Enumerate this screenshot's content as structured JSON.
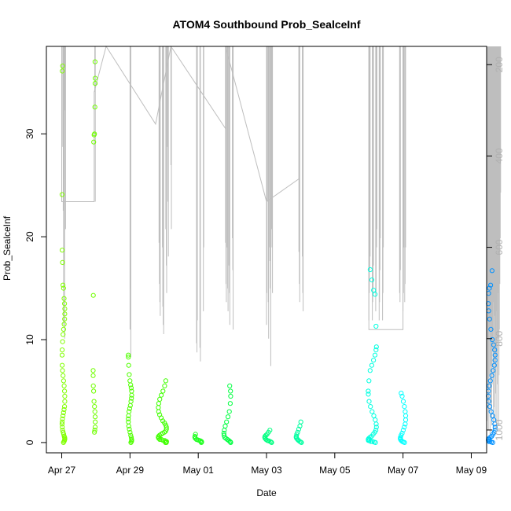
{
  "chart_data": {
    "type": "scatter",
    "title": "ATOM4 Southbound Prob_SealceInf",
    "xlabel": "Date",
    "ylabel": "Prob_SealceInf",
    "x_unit": "days since Apr 27",
    "xlim": [
      -0.45,
      12.45
    ],
    "ylim": [
      -1.0,
      38.5
    ],
    "y2lim": [
      1050,
      160
    ],
    "x_ticks": [
      {
        "value": 0,
        "label": "Apr 27"
      },
      {
        "value": 2,
        "label": "Apr 29"
      },
      {
        "value": 4,
        "label": "May 01"
      },
      {
        "value": 6,
        "label": "May 03"
      },
      {
        "value": 8,
        "label": "May 05"
      },
      {
        "value": 10,
        "label": "May 07"
      },
      {
        "value": 12,
        "label": "May 09"
      }
    ],
    "y_ticks": [
      {
        "value": 0,
        "label": "0"
      },
      {
        "value": 10,
        "label": "10"
      },
      {
        "value": 20,
        "label": "20"
      },
      {
        "value": 30,
        "label": "30"
      }
    ],
    "y2_ticks": [
      {
        "value": 200,
        "label": "200"
      },
      {
        "value": 400,
        "label": "400"
      },
      {
        "value": 600,
        "label": "600"
      },
      {
        "value": 800,
        "label": "800"
      },
      {
        "value": 1000,
        "label": "1000"
      }
    ],
    "colors": {
      "axis": "#000000",
      "depth_line": "#bebebe",
      "palette": [
        "#80ff00",
        "#40ff00",
        "#00ff40",
        "#00ff80",
        "#00ffbf",
        "#00ffff",
        "#00bfff",
        "#0080ff"
      ]
    },
    "clusters": [
      {
        "x": 0.05,
        "spread": 0.04,
        "color": "#80ff00",
        "values": [
          0,
          0.1,
          0.2,
          0.3,
          0.4,
          0.5,
          0.6,
          0.8,
          1.0,
          1.2,
          1.5,
          1.8,
          2.0,
          2.3,
          2.6,
          2.9,
          3.2,
          3.5,
          4.0,
          4.5,
          5.0,
          5.5,
          6.0,
          6.5,
          7.0,
          7.5,
          8.5,
          9.0,
          9.8,
          10.5,
          11.0,
          11.5,
          12.0,
          12.5,
          13.0,
          13.5,
          14.0,
          15.0,
          15.3,
          17.5,
          18.7,
          24.1,
          36.1,
          36.6
        ]
      },
      {
        "x": 0.95,
        "spread": 0.03,
        "color": "#70ff00",
        "values": [
          1.0,
          1.2,
          1.5,
          2.0,
          2.5,
          3.0,
          3.5,
          4.0,
          5.0,
          5.5,
          6.5,
          7.0,
          14.3,
          29.2,
          29.9,
          30.0,
          32.6,
          34.9,
          35.4,
          37.0
        ]
      },
      {
        "x": 2.0,
        "spread": 0.05,
        "color": "#50ff00",
        "values": [
          0,
          0.1,
          0.2,
          0.3,
          0.5,
          0.7,
          1.0,
          1.3,
          1.6,
          2.0,
          2.3,
          2.6,
          3.0,
          3.3,
          3.6,
          4.0,
          4.3,
          4.6,
          5.0,
          5.3,
          5.6,
          6.0,
          6.6,
          7.5,
          8.3,
          8.5
        ]
      },
      {
        "x": 2.95,
        "spread": 0.12,
        "color": "#40ff00",
        "values": [
          0,
          0,
          0.1,
          0.1,
          0.2,
          0.2,
          0.3,
          0.3,
          0.4,
          0.5,
          0.6,
          0.7,
          0.8,
          0.9,
          1.0,
          1.1,
          1.3,
          1.5,
          1.7,
          1.9,
          2.1,
          2.4,
          2.7,
          3.0,
          3.4,
          3.8,
          4.2,
          4.6,
          5.0,
          5.5,
          6.0
        ]
      },
      {
        "x": 4.0,
        "spread": 0.1,
        "color": "#20ff20",
        "values": [
          0,
          0.05,
          0.1,
          0.15,
          0.2,
          0.25,
          0.3,
          0.4,
          0.5,
          0.6,
          0.8
        ]
      },
      {
        "x": 4.85,
        "spread": 0.1,
        "color": "#00ff40",
        "values": [
          0,
          0.05,
          0.1,
          0.2,
          0.3,
          0.4,
          0.5,
          0.7,
          0.9,
          1.2,
          1.6,
          2.0,
          2.5,
          3.0,
          3.8,
          4.5,
          5.0,
          5.5
        ]
      },
      {
        "x": 6.05,
        "spread": 0.1,
        "color": "#00ff80",
        "values": [
          0,
          0.05,
          0.1,
          0.15,
          0.2,
          0.3,
          0.4,
          0.5,
          0.6,
          0.7,
          0.8,
          1.0,
          1.2
        ]
      },
      {
        "x": 6.95,
        "spread": 0.08,
        "color": "#00ffa0",
        "values": [
          0,
          0.05,
          0.1,
          0.2,
          0.3,
          0.4,
          0.5,
          0.6,
          0.8,
          1.0,
          1.3,
          1.6,
          2.0
        ]
      },
      {
        "x": 9.1,
        "spread": 0.12,
        "color": "#00ffe0",
        "values": [
          0,
          0.05,
          0.1,
          0.1,
          0.2,
          0.2,
          0.3,
          0.4,
          0.5,
          0.6,
          0.8,
          1.0,
          1.2,
          1.5,
          1.8,
          2.2,
          2.6,
          3.0,
          3.5,
          4.0,
          4.7,
          5.0,
          6.0,
          7.0,
          7.5,
          8.0,
          8.5,
          9.0,
          9.3,
          11.3,
          14.4,
          14.8,
          15.8,
          16.8
        ]
      },
      {
        "x": 10.0,
        "spread": 0.08,
        "color": "#00ffff",
        "values": [
          0,
          0.05,
          0.1,
          0.2,
          0.3,
          0.4,
          0.5,
          0.7,
          0.9,
          1.2,
          1.5,
          1.8,
          2.2,
          2.6,
          3.0,
          3.5,
          4.0,
          4.5,
          4.8
        ]
      },
      {
        "x": 12.6,
        "spread": 0.1,
        "color": "#0090ff",
        "values": [
          0,
          0.05,
          0.1,
          0.1,
          0.2,
          0.3,
          0.4,
          0.5,
          0.6,
          0.8,
          1.0,
          1.2,
          1.5,
          1.8,
          2.2,
          2.6,
          3.0,
          3.5,
          4.0,
          4.5,
          5.0,
          5.5,
          6.0,
          6.5,
          7.0,
          7.5,
          8.0,
          8.5,
          9.0,
          9.5,
          10.0,
          11.0,
          12.0,
          12.8,
          13.5,
          14.5,
          15.0,
          15.3,
          16.7
        ]
      }
    ],
    "depth_spikes": [
      {
        "x": 0.0,
        "lows": [
          500
        ]
      },
      {
        "x": 0.03,
        "lows": [
          380,
          520,
          770
        ]
      },
      {
        "x": 0.06,
        "lows": [
          450,
          640,
          800
        ]
      },
      {
        "x": 0.1,
        "lows": [
          300,
          560
        ]
      },
      {
        "x": 0.97,
        "lows": [
          260,
          500
        ]
      },
      {
        "x": 2.0,
        "lows": [
          780,
          690,
          840
        ]
      },
      {
        "x": 2.85,
        "lows": [
          590,
          680,
          720,
          750
        ]
      },
      {
        "x": 2.95,
        "lows": [
          600,
          730,
          770,
          790
        ]
      },
      {
        "x": 3.05,
        "lows": [
          560,
          640,
          700
        ]
      },
      {
        "x": 3.1,
        "lows": [
          380,
          500,
          620
        ]
      },
      {
        "x": 3.2,
        "lows": [
          420,
          560
        ]
      },
      {
        "x": 3.95,
        "lows": [
          810,
          830,
          760
        ]
      },
      {
        "x": 4.05,
        "lows": [
          820,
          850
        ]
      },
      {
        "x": 4.15,
        "lows": [
          740,
          600
        ]
      },
      {
        "x": 4.8,
        "lows": [
          590,
          680,
          720
        ]
      },
      {
        "x": 4.85,
        "lows": [
          600,
          690,
          740
        ]
      },
      {
        "x": 4.9,
        "lows": [
          640,
          700,
          770
        ]
      },
      {
        "x": 5.0,
        "lows": [
          580,
          650,
          780
        ]
      },
      {
        "x": 6.0,
        "lows": [
          770,
          700,
          500
        ]
      },
      {
        "x": 6.05,
        "lows": [
          720,
          800,
          600
        ]
      },
      {
        "x": 6.1,
        "lows": [
          630,
          690,
          860
        ]
      },
      {
        "x": 6.15,
        "lows": [
          560,
          600,
          700
        ]
      },
      {
        "x": 6.95,
        "lows": [
          610,
          680,
          720
        ]
      },
      {
        "x": 7.05,
        "lows": [
          620,
          700,
          740
        ]
      },
      {
        "x": 9.0,
        "lows": [
          760,
          700,
          650,
          620
        ]
      },
      {
        "x": 9.1,
        "lows": [
          760,
          720,
          690,
          640
        ]
      },
      {
        "x": 9.2,
        "lows": [
          740,
          700,
          600,
          560
        ]
      },
      {
        "x": 9.3,
        "lows": [
          760,
          720,
          650,
          580
        ]
      },
      {
        "x": 9.4,
        "lows": [
          760,
          700,
          600
        ]
      },
      {
        "x": 9.9,
        "lows": [
          700,
          720,
          650
        ]
      },
      {
        "x": 10.0,
        "lows": [
          740,
          700,
          600
        ]
      },
      {
        "x": 10.05,
        "lows": [
          720,
          680,
          600
        ]
      },
      {
        "x": 12.45,
        "lows": [
          1010,
          980,
          900,
          800,
          700,
          600,
          500,
          400
        ]
      },
      {
        "x": 12.5,
        "lows": [
          1000,
          960,
          880,
          780,
          680,
          580
        ]
      },
      {
        "x": 12.55,
        "lows": [
          1010,
          940,
          860,
          760,
          660,
          560,
          460
        ]
      },
      {
        "x": 12.6,
        "lows": [
          990,
          900,
          820,
          720,
          620,
          520,
          420
        ]
      },
      {
        "x": 12.65,
        "lows": [
          1000,
          950,
          850,
          750,
          650
        ]
      },
      {
        "x": 12.7,
        "lows": [
          980,
          920,
          840,
          740,
          640
        ]
      },
      {
        "x": 12.75,
        "lows": [
          1000,
          900,
          800,
          700,
          600,
          500,
          420
        ]
      },
      {
        "x": 12.8,
        "lows": [
          990,
          880,
          780,
          680,
          580,
          480
        ]
      }
    ],
    "depth_trend": [
      {
        "x": 0.0,
        "y": 160
      },
      {
        "x": 0.0,
        "y": 500
      },
      {
        "x": 0.95,
        "y": 500
      },
      {
        "x": 0.95,
        "y": 260
      },
      {
        "x": 1.3,
        "y": 160
      },
      {
        "x": 1.3,
        "y": 160
      },
      {
        "x": 2.75,
        "y": 330
      },
      {
        "x": 3.2,
        "y": 160
      },
      {
        "x": 4.8,
        "y": 340
      },
      {
        "x": 4.8,
        "y": 160
      },
      {
        "x": 6.0,
        "y": 500
      },
      {
        "x": 6.95,
        "y": 450
      },
      {
        "x": 6.95,
        "y": 160
      },
      {
        "x": 9.0,
        "y": 160
      },
      {
        "x": 9.0,
        "y": 780
      },
      {
        "x": 10.0,
        "y": 780
      },
      {
        "x": 10.0,
        "y": 160
      }
    ]
  }
}
